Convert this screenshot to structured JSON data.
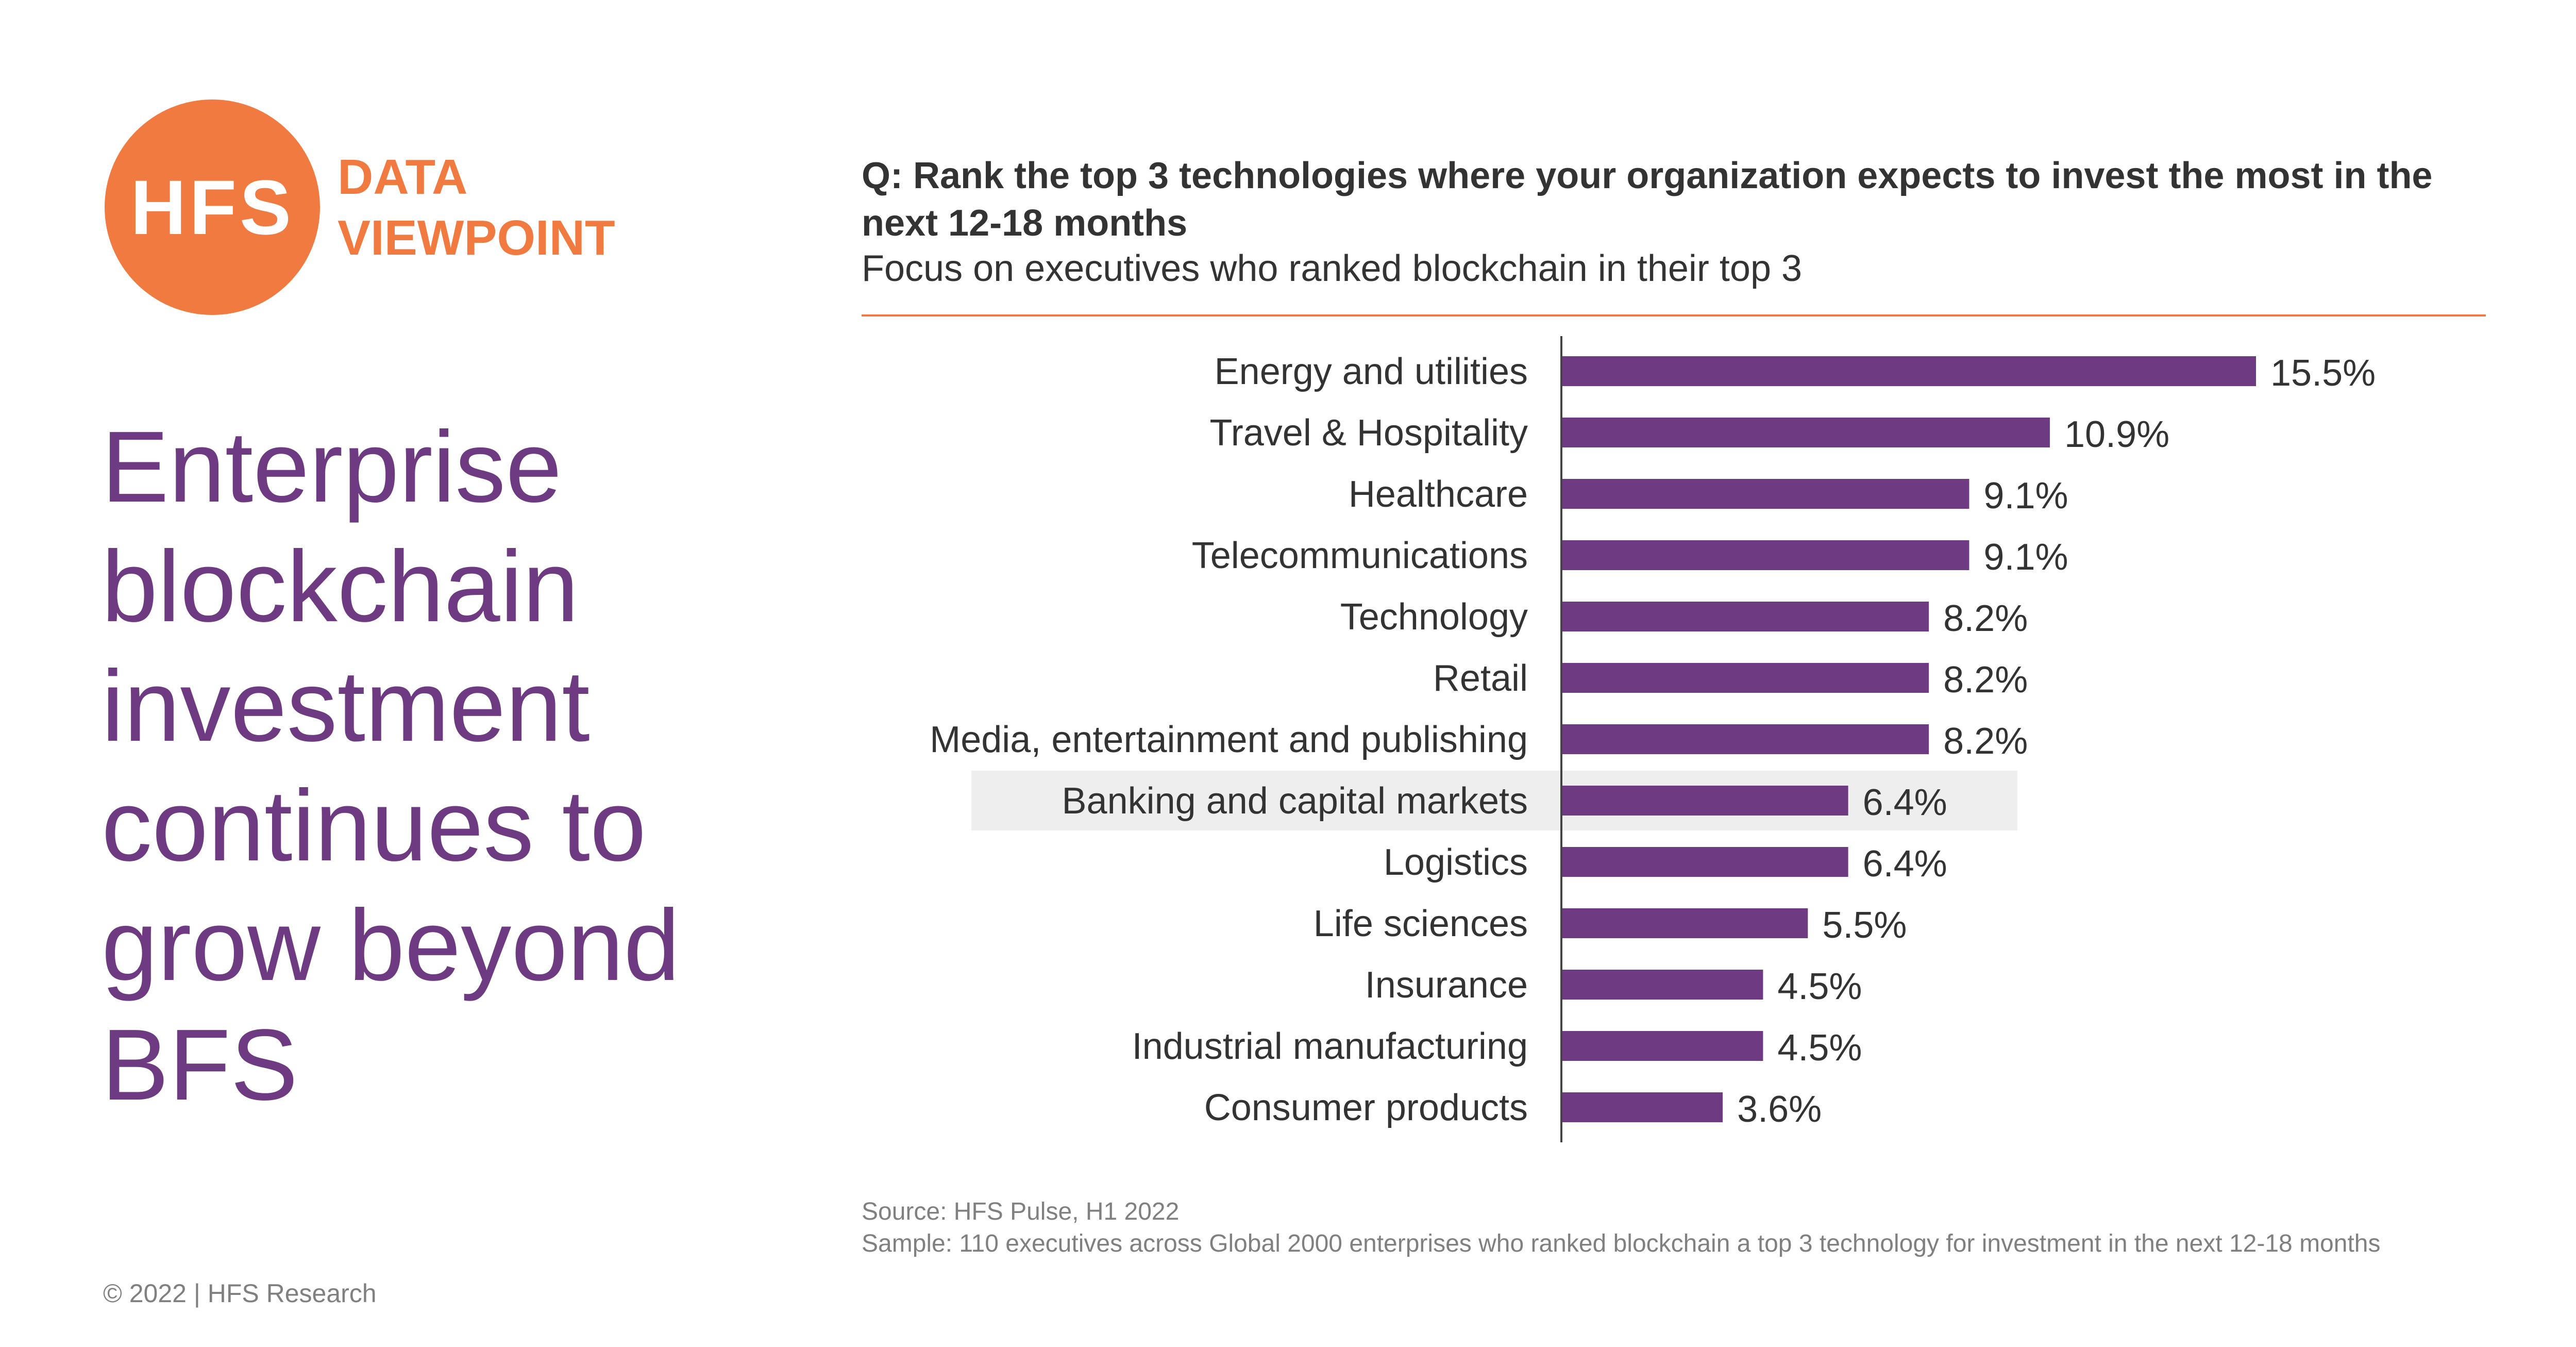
{
  "logo": {
    "mark": "HFS",
    "line1": "DATA",
    "line2": "VIEWPOINT"
  },
  "headline": {
    "lines": [
      "Enterprise",
      "blockchain",
      "investment",
      "continues to",
      "grow beyond",
      "BFS"
    ]
  },
  "question": "Q: Rank the top 3 technologies where your organization expects to invest the most in the next 12-18 months",
  "subtitle": "Focus on executives who ranked blockchain in their top 3",
  "source": {
    "line1": "Source: HFS Pulse, H1 2022",
    "line2": "Sample: 110 executives across Global 2000 enterprises who ranked blockchain a top 3 technology for investment in the next 12-18 months"
  },
  "copyright": "© 2022 | HFS Research",
  "colors": {
    "brand_orange": "#F07A3F",
    "bar_purple": "#6E3A82",
    "headline_purple": "#6E3A82",
    "highlight_gray": "#EEEEEF",
    "text_dark": "#333333",
    "text_gray": "#808080"
  },
  "chart_data": {
    "type": "bar",
    "orientation": "horizontal",
    "categories": [
      "Energy and utilities",
      "Travel & Hospitality",
      "Healthcare",
      "Telecommunications",
      "Technology",
      "Retail",
      "Media, entertainment and publishing",
      "Banking and capital markets",
      "Logistics",
      "Life sciences",
      "Insurance",
      "Industrial manufacturing",
      "Consumer products"
    ],
    "values": [
      15.5,
      10.9,
      9.1,
      9.1,
      8.2,
      8.2,
      8.2,
      6.4,
      6.4,
      5.5,
      4.5,
      4.5,
      3.6
    ],
    "value_labels": [
      "15.5%",
      "10.9%",
      "9.1%",
      "9.1%",
      "8.2%",
      "8.2%",
      "8.2%",
      "6.4%",
      "6.4%",
      "5.5%",
      "4.5%",
      "4.5%",
      "3.6%"
    ],
    "highlighted_category": "Banking and capital markets",
    "xlim": [
      0,
      15.5
    ],
    "grid": false,
    "legend": "none"
  }
}
